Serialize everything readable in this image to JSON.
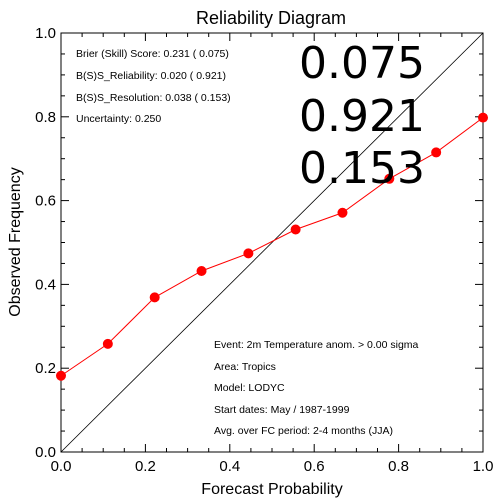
{
  "chart_data": {
    "type": "line",
    "title": "Reliability Diagram",
    "xlabel": "Forecast Probability",
    "ylabel": "Observed Frequency",
    "xlim": [
      0.0,
      1.0
    ],
    "ylim": [
      0.0,
      1.0
    ],
    "xticks": [
      "0.0",
      "0.2",
      "0.4",
      "0.6",
      "0.8",
      "1.0"
    ],
    "yticks": [
      "0.0",
      "0.2",
      "0.4",
      "0.6",
      "0.8",
      "1.0"
    ],
    "grid": false,
    "diagonal": true,
    "series": [
      {
        "color": "#ff0000",
        "x": [
          0.0,
          0.111,
          0.222,
          0.333,
          0.444,
          0.556,
          0.667,
          0.778,
          0.889,
          1.0
        ],
        "y": [
          0.182,
          0.258,
          0.369,
          0.432,
          0.474,
          0.531,
          0.571,
          0.652,
          0.715,
          0.798
        ]
      }
    ],
    "stats": [
      "Brier (Skill) Score:  0.231 (  0.075)",
      "B(S)S_Reliability:   0.020 (  0.921)",
      "B(S)S_Resolution:  0.038 (  0.153)",
      "Uncertainty:   0.250"
    ],
    "big_numbers": [
      "0.075",
      "0.921",
      "0.153"
    ],
    "info": [
      "Event: 2m Temperature anom. >  0.00 sigma",
      "Area: Tropics",
      "Model: LODYC",
      "Start dates: May / 1987-1999",
      "Avg. over FC period: 2-4 months (JJA)"
    ]
  }
}
